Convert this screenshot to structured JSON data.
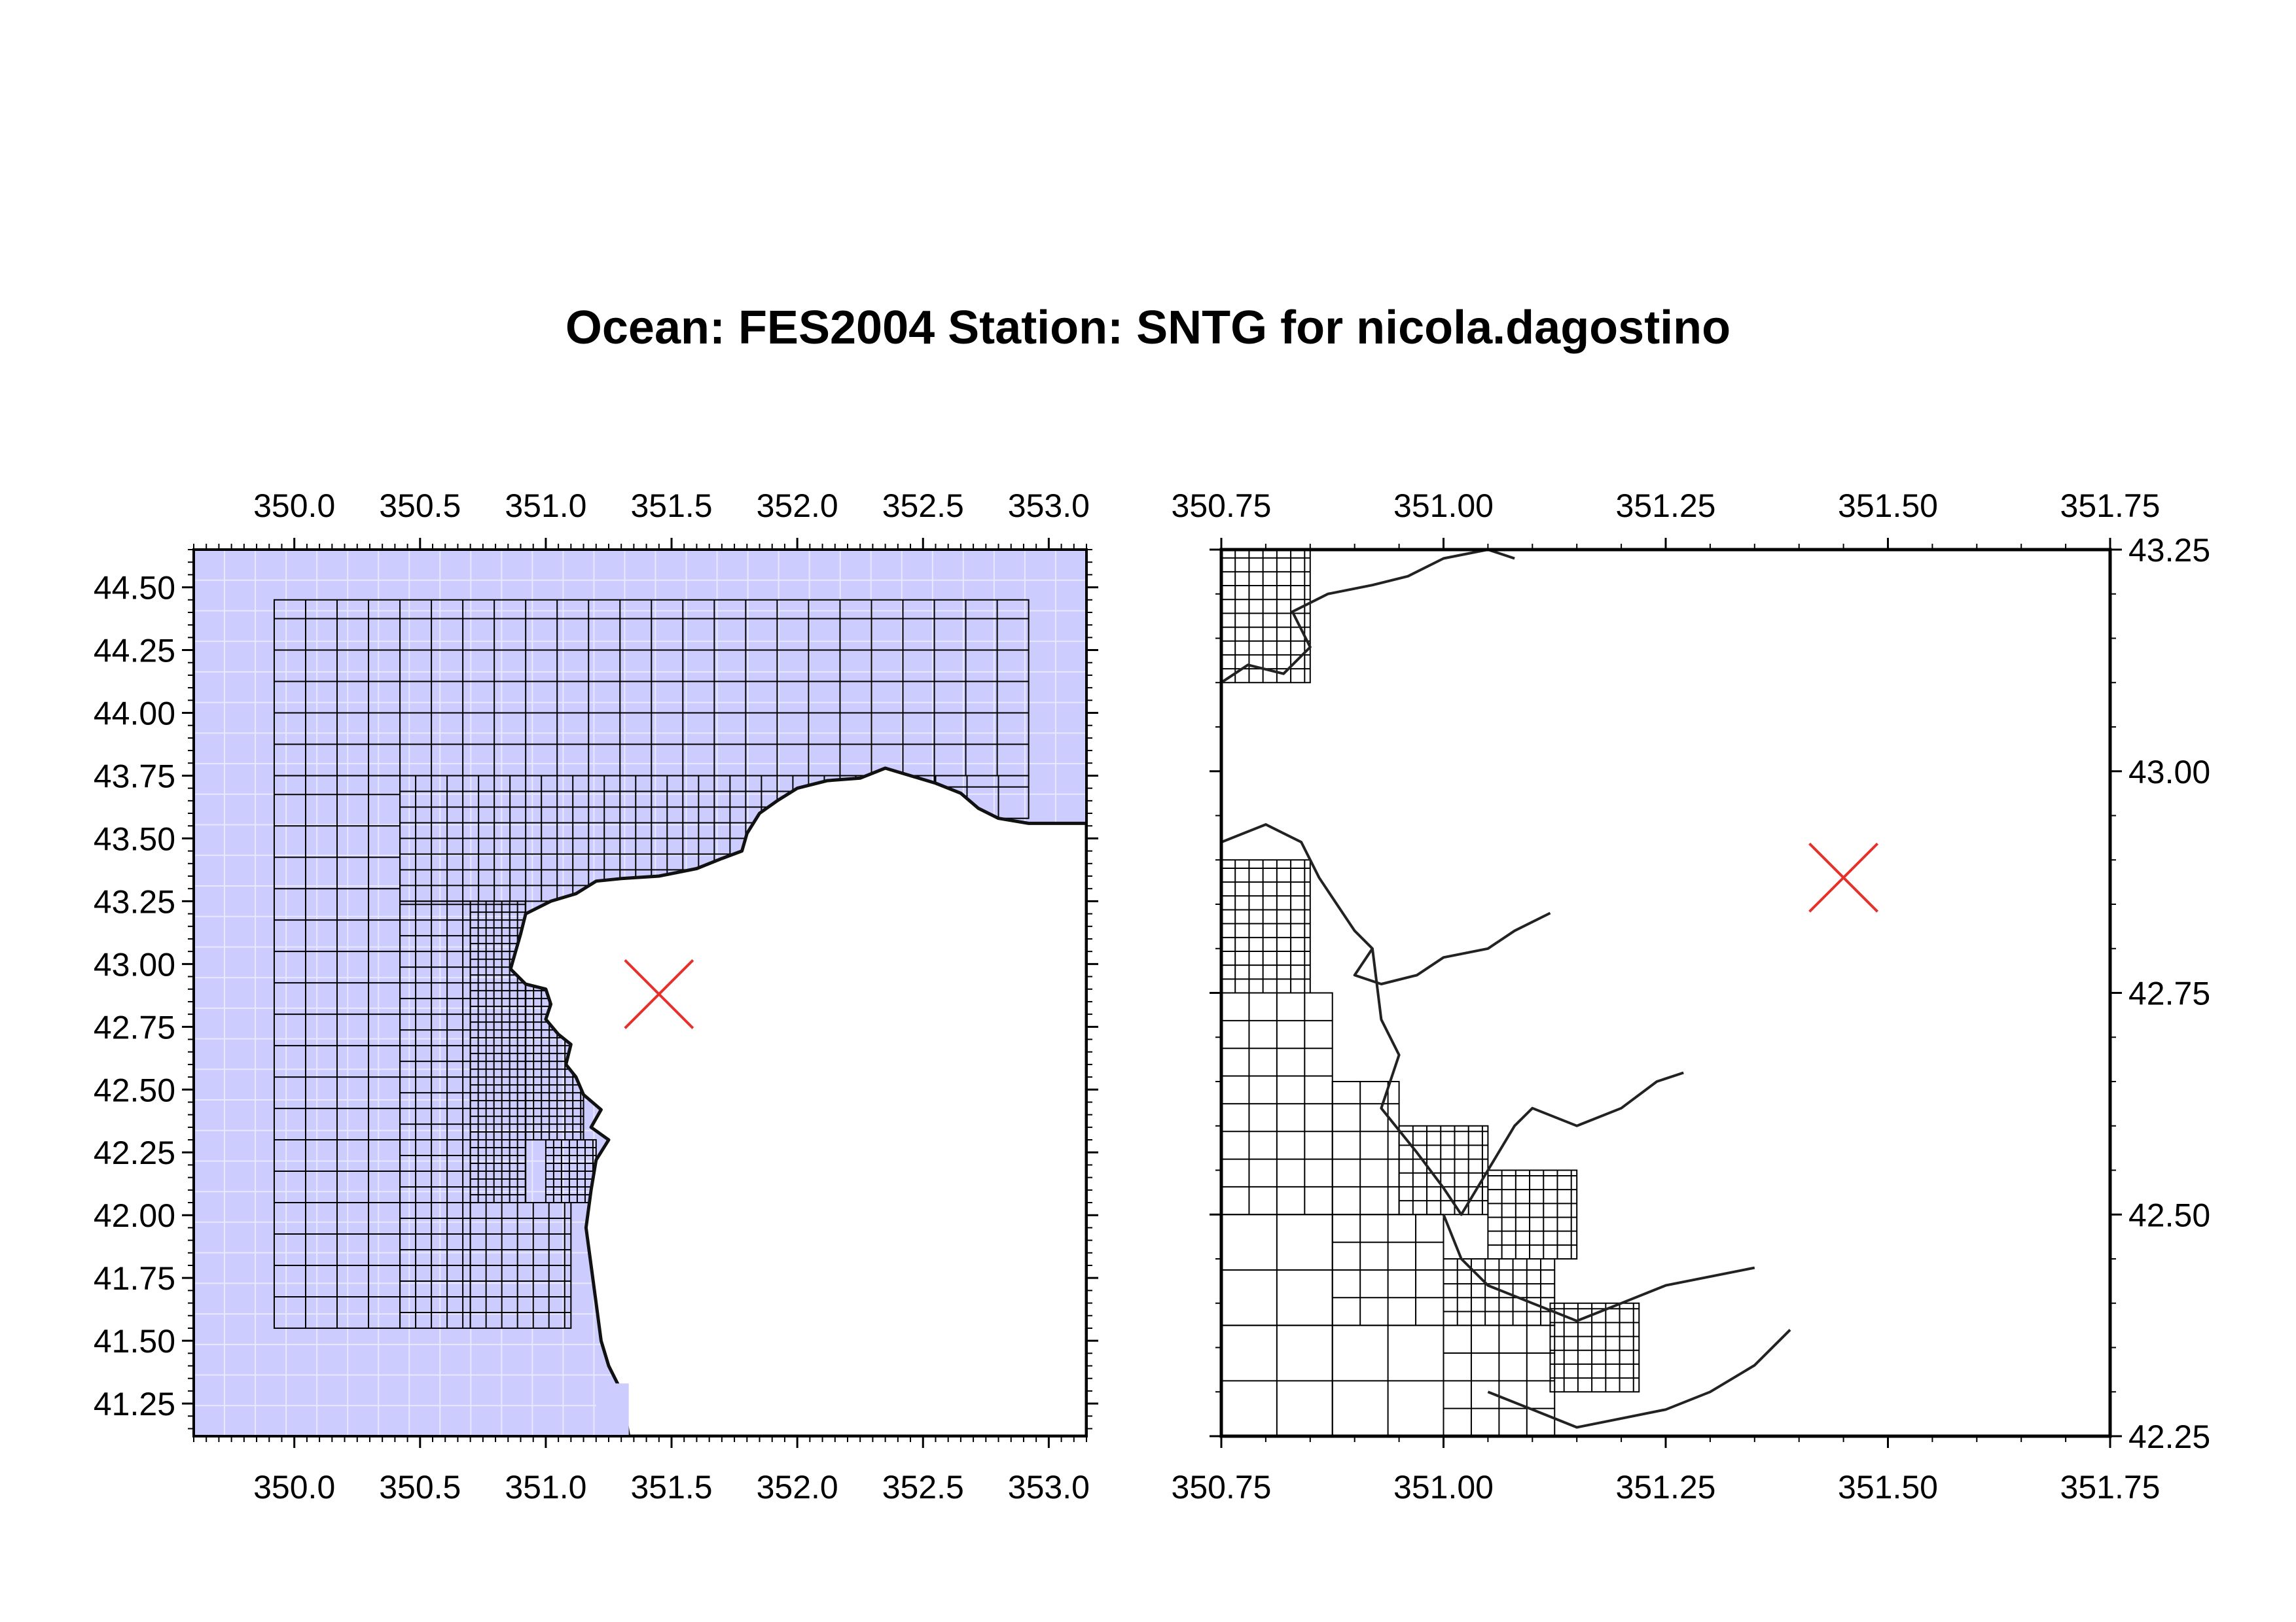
{
  "title": "Ocean: FES2004  Station: SNTG  for nicola.dagostino",
  "colors": {
    "ocean_fill": "#ccccff",
    "grid_line": "#000000",
    "station_marker": "#e8302a",
    "land": "#ffffff"
  },
  "station": {
    "lon": 351.45,
    "lat": 42.88,
    "marker": "x"
  },
  "maps": [
    {
      "name": "overview-map",
      "xlim": [
        349.6,
        353.15
      ],
      "ylim": [
        41.12,
        44.65
      ],
      "x_ticks": [
        "350.0",
        "350.5",
        "351.0",
        "351.5",
        "352.0",
        "352.5",
        "353.0"
      ],
      "y_ticks": [
        "41.25",
        "41.50",
        "41.75",
        "42.00",
        "42.25",
        "42.50",
        "42.75",
        "43.00",
        "43.25",
        "43.50",
        "43.75",
        "44.00",
        "44.25",
        "44.50"
      ],
      "y_axis_side": "left"
    },
    {
      "name": "zoom-map",
      "xlim": [
        350.75,
        351.75
      ],
      "ylim": [
        42.25,
        43.25
      ],
      "x_ticks": [
        "350.75",
        "351.00",
        "351.25",
        "351.50",
        "351.75"
      ],
      "y_ticks": [
        "42.25",
        "42.50",
        "42.75",
        "43.00",
        "43.25"
      ],
      "y_axis_side": "right"
    }
  ]
}
